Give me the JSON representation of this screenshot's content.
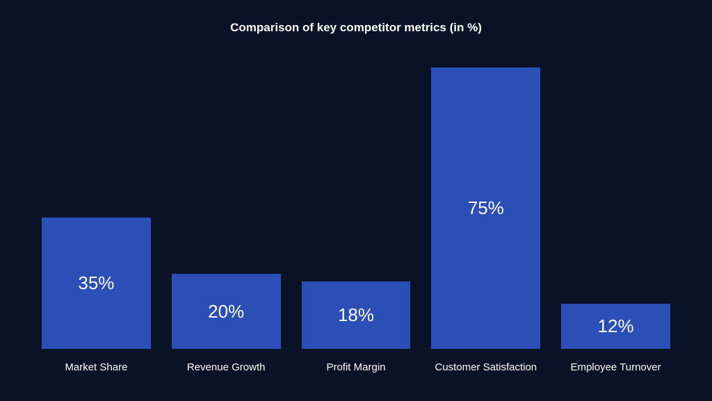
{
  "chart": {
    "type": "bar",
    "title": "Comparison of key competitor metrics (in %)",
    "title_fontsize": 17,
    "title_color": "#ffffff",
    "background_color": "#0a1228",
    "bar_color": "#2b4fb6",
    "value_color": "#ffffff",
    "value_fontsize": 26,
    "label_color": "#ffffff",
    "label_fontsize": 15,
    "ylim_max": 80,
    "bars": [
      {
        "label": "Market Share",
        "value": 35,
        "display": "35%"
      },
      {
        "label": "Revenue Growth",
        "value": 20,
        "display": "20%"
      },
      {
        "label": "Profit Margin",
        "value": 18,
        "display": "18%"
      },
      {
        "label": "Customer Satisfaction",
        "value": 75,
        "display": "75%"
      },
      {
        "label": "Employee Turnover",
        "value": 12,
        "display": "12%"
      }
    ]
  }
}
